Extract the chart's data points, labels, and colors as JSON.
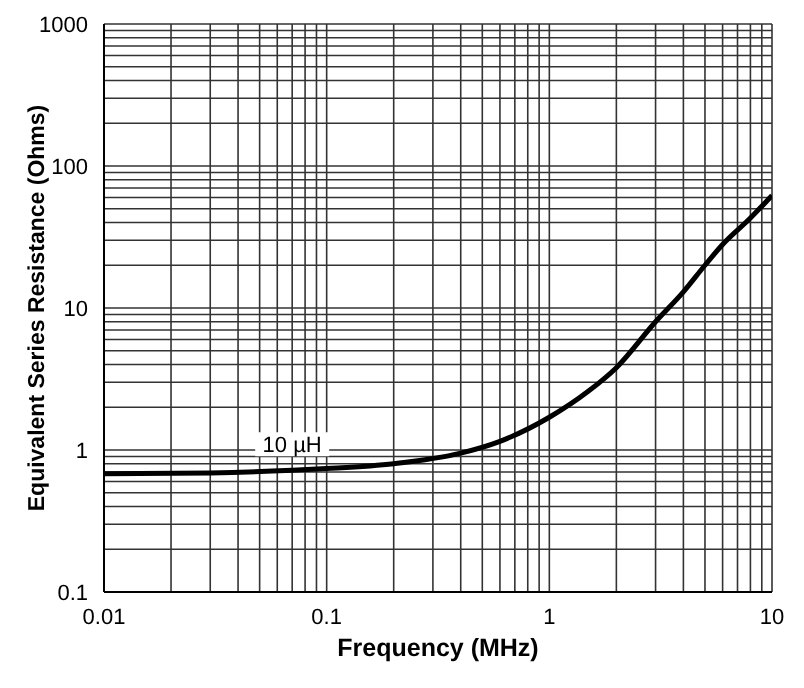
{
  "chart_data": {
    "type": "line",
    "xlabel": "Frequency (MHz)",
    "ylabel": "Equivalent Series Resistance (Ohms)",
    "log": "xy",
    "grid": true,
    "legend": false,
    "marker": "none",
    "line_style": "solid",
    "xlim": [
      0.01,
      10
    ],
    "ylim": [
      0.1,
      1000
    ],
    "xticks": [
      {
        "value": 0.01,
        "label": "0.01"
      },
      {
        "value": 0.02,
        "label": null
      },
      {
        "value": 0.03,
        "label": null
      },
      {
        "value": 0.04,
        "label": null
      },
      {
        "value": 0.05,
        "label": null
      },
      {
        "value": 0.06,
        "label": null
      },
      {
        "value": 0.07,
        "label": null
      },
      {
        "value": 0.08,
        "label": null
      },
      {
        "value": 0.09,
        "label": null
      },
      {
        "value": 0.1,
        "label": "0.1"
      },
      {
        "value": 0.2,
        "label": null
      },
      {
        "value": 0.3,
        "label": null
      },
      {
        "value": 0.4,
        "label": null
      },
      {
        "value": 0.5,
        "label": null
      },
      {
        "value": 0.6,
        "label": null
      },
      {
        "value": 0.7,
        "label": null
      },
      {
        "value": 0.8,
        "label": null
      },
      {
        "value": 0.9,
        "label": null
      },
      {
        "value": 1,
        "label": "1"
      },
      {
        "value": 2,
        "label": null
      },
      {
        "value": 3,
        "label": null
      },
      {
        "value": 4,
        "label": null
      },
      {
        "value": 5,
        "label": null
      },
      {
        "value": 6,
        "label": null
      },
      {
        "value": 7,
        "label": null
      },
      {
        "value": 8,
        "label": null
      },
      {
        "value": 9,
        "label": null
      },
      {
        "value": 10,
        "label": "10"
      }
    ],
    "yticks": [
      {
        "value": 0.1,
        "label": "0.1"
      },
      {
        "value": 0.2,
        "label": null
      },
      {
        "value": 0.3,
        "label": null
      },
      {
        "value": 0.4,
        "label": null
      },
      {
        "value": 0.5,
        "label": null
      },
      {
        "value": 0.6,
        "label": null
      },
      {
        "value": 0.7,
        "label": null
      },
      {
        "value": 0.8,
        "label": null
      },
      {
        "value": 0.9,
        "label": null
      },
      {
        "value": 1,
        "label": "1"
      },
      {
        "value": 2,
        "label": null
      },
      {
        "value": 3,
        "label": null
      },
      {
        "value": 4,
        "label": null
      },
      {
        "value": 5,
        "label": null
      },
      {
        "value": 6,
        "label": null
      },
      {
        "value": 7,
        "label": null
      },
      {
        "value": 8,
        "label": null
      },
      {
        "value": 9,
        "label": null
      },
      {
        "value": 10,
        "label": "10"
      },
      {
        "value": 20,
        "label": null
      },
      {
        "value": 30,
        "label": null
      },
      {
        "value": 40,
        "label": null
      },
      {
        "value": 50,
        "label": null
      },
      {
        "value": 60,
        "label": null
      },
      {
        "value": 70,
        "label": null
      },
      {
        "value": 80,
        "label": null
      },
      {
        "value": 90,
        "label": null
      },
      {
        "value": 100,
        "label": "100"
      },
      {
        "value": 200,
        "label": null
      },
      {
        "value": 300,
        "label": null
      },
      {
        "value": 400,
        "label": null
      },
      {
        "value": 500,
        "label": null
      },
      {
        "value": 600,
        "label": null
      },
      {
        "value": 700,
        "label": null
      },
      {
        "value": 800,
        "label": null
      },
      {
        "value": 900,
        "label": null
      },
      {
        "value": 1000,
        "label": "1000"
      }
    ],
    "x": [
      0.01,
      0.03,
      0.07,
      0.1,
      0.2,
      0.4,
      0.6,
      1,
      1.5,
      2,
      3,
      4,
      5,
      6,
      8,
      10
    ],
    "series": [
      {
        "color": "#000000",
        "values": [
          0.68,
          0.69,
          0.72,
          0.74,
          0.8,
          0.95,
          1.15,
          1.7,
          2.6,
          3.8,
          8,
          13,
          20,
          28,
          43,
          62
        ]
      }
    ],
    "annotations": [
      {
        "text": "10 µH",
        "x": 0.07,
        "y": 0.72
      }
    ]
  }
}
